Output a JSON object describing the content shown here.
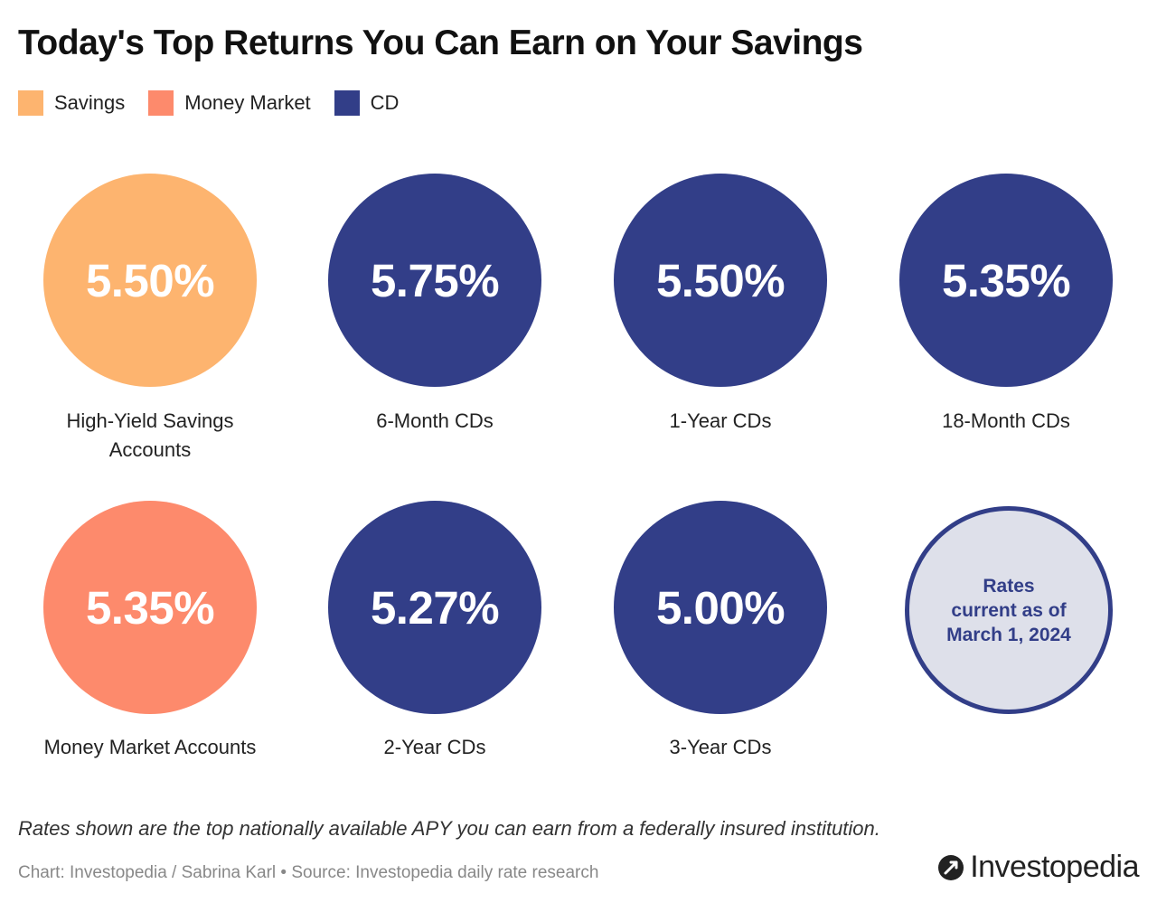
{
  "title": "Today's Top Returns You Can Earn on Your Savings",
  "legend": [
    {
      "label": "Savings",
      "color": "#FDB46F"
    },
    {
      "label": "Money Market",
      "color": "#FD8A6C"
    },
    {
      "label": "CD",
      "color": "#323E88"
    }
  ],
  "chart_data": {
    "type": "table",
    "title": "Today's Top Returns You Can Earn on Your Savings",
    "unit": "%",
    "items": [
      {
        "category": "Savings",
        "label": "High-Yield Savings Accounts",
        "value": 5.5,
        "display": "5.50%",
        "color": "#FDB46F"
      },
      {
        "category": "CD",
        "label": "6-Month CDs",
        "value": 5.75,
        "display": "5.75%",
        "color": "#323E88"
      },
      {
        "category": "CD",
        "label": "1-Year CDs",
        "value": 5.5,
        "display": "5.50%",
        "color": "#323E88"
      },
      {
        "category": "CD",
        "label": "18-Month CDs",
        "value": 5.35,
        "display": "5.35%",
        "color": "#323E88"
      },
      {
        "category": "Money Market",
        "label": "Money Market Accounts",
        "value": 5.35,
        "display": "5.35%",
        "color": "#FD8A6C"
      },
      {
        "category": "CD",
        "label": "2-Year CDs",
        "value": 5.27,
        "display": "5.27%",
        "color": "#323E88"
      },
      {
        "category": "CD",
        "label": "3-Year CDs",
        "value": 5.0,
        "display": "5.00%",
        "color": "#323E88"
      }
    ]
  },
  "note_circle": {
    "line1": "Rates",
    "line2": "current as of",
    "line3": "March 1, 2024",
    "fill": "#DEE0EA",
    "border": "#323E88"
  },
  "footnote": "Rates shown are the top nationally available APY you can earn from a federally insured institution.",
  "credit": "Chart: Investopedia / Sabrina Karl • Source: Investopedia daily rate research",
  "logo": {
    "text": "Investopedia"
  }
}
